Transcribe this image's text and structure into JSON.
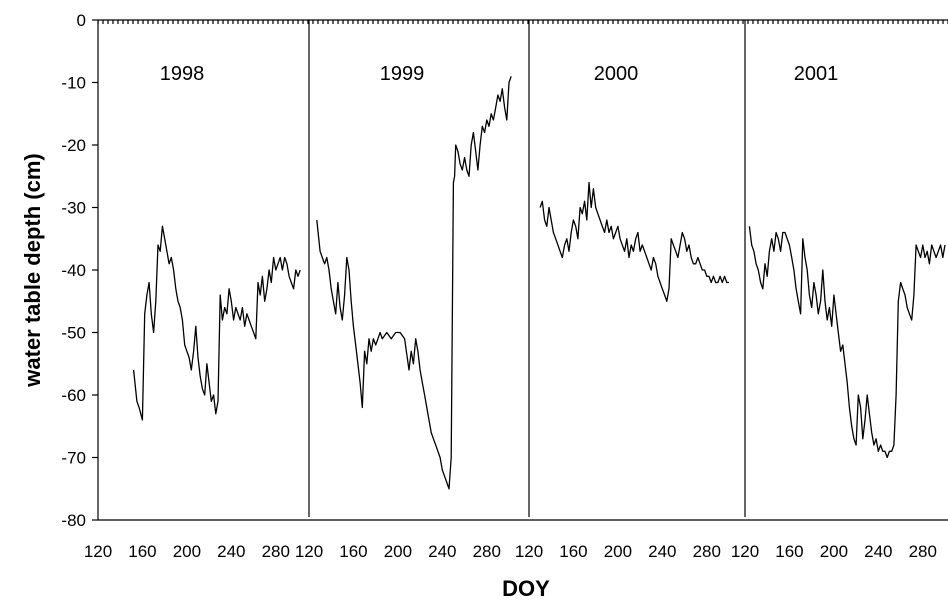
{
  "chart_data": {
    "type": "line",
    "ylabel": "water table depth (cm)",
    "xlabel": "DOY",
    "ylim": [
      -80,
      0
    ],
    "yticks": [
      0,
      -10,
      -20,
      -30,
      -40,
      -50,
      -60,
      -70,
      -80
    ],
    "xlim": [
      120,
      300
    ],
    "xticks": [
      120,
      160,
      200,
      240,
      280
    ],
    "grid": false,
    "panels": [
      {
        "name": "1998",
        "x": [
          152,
          155,
          157,
          160,
          162,
          164,
          166,
          168,
          170,
          172,
          174,
          176,
          178,
          180,
          182,
          184,
          186,
          188,
          190,
          192,
          194,
          196,
          198,
          200,
          202,
          204,
          206,
          208,
          210,
          212,
          214,
          216,
          218,
          220,
          222,
          224,
          226,
          228,
          230,
          232,
          234,
          236,
          238,
          240,
          242,
          244,
          246,
          248,
          250,
          252,
          254,
          256,
          258,
          260,
          262,
          264,
          266,
          268,
          270,
          272,
          274,
          276,
          278,
          280,
          282,
          284,
          286,
          288,
          290,
          292,
          294,
          296,
          298,
          300,
          302
        ],
        "y": [
          -56,
          -61,
          -62,
          -64,
          -47,
          -44,
          -42,
          -47,
          -50,
          -45,
          -36,
          -37,
          -33,
          -35,
          -37,
          -39,
          -38,
          -40,
          -43,
          -45,
          -46,
          -48,
          -52,
          -53,
          -54,
          -56,
          -53,
          -49,
          -54,
          -57,
          -59,
          -60,
          -55,
          -58,
          -61,
          -60,
          -63,
          -61,
          -44,
          -48,
          -46,
          -47,
          -43,
          -45,
          -48,
          -46,
          -47,
          -48,
          -46,
          -49,
          -47,
          -48,
          -49,
          -50,
          -51,
          -42,
          -44,
          -41,
          -45,
          -43,
          -40,
          -42,
          -38,
          -40,
          -39,
          -38,
          -40,
          -38,
          -39,
          -41,
          -42,
          -43,
          -40,
          -41,
          -40
        ]
      },
      {
        "name": "1999",
        "x": [
          127,
          130,
          132,
          134,
          136,
          138,
          140,
          142,
          144,
          146,
          148,
          150,
          152,
          154,
          156,
          158,
          160,
          162,
          164,
          166,
          168,
          170,
          172,
          174,
          176,
          178,
          180,
          182,
          184,
          186,
          190,
          194,
          198,
          202,
          206,
          210,
          212,
          214,
          216,
          218,
          220,
          222,
          224,
          226,
          228,
          230,
          232,
          234,
          236,
          238,
          240,
          242,
          244,
          246,
          248,
          250,
          251,
          252,
          254,
          256,
          258,
          260,
          262,
          264,
          266,
          268,
          270,
          272,
          274,
          276,
          278,
          280,
          282,
          284,
          286,
          288,
          290,
          292,
          294,
          296,
          298,
          300,
          302
        ],
        "y": [
          -32,
          -37,
          -38,
          -39,
          -38,
          -40,
          -43,
          -45,
          -47,
          -42,
          -46,
          -48,
          -44,
          -38,
          -40,
          -45,
          -49,
          -52,
          -55,
          -58,
          -62,
          -53,
          -55,
          -51,
          -53,
          -51,
          -52,
          -51,
          -50,
          -51,
          -50,
          -51,
          -50,
          -50,
          -51,
          -56,
          -53,
          -55,
          -51,
          -53,
          -56,
          -58,
          -60,
          -62,
          -64,
          -66,
          -67,
          -68,
          -69,
          -70,
          -72,
          -73,
          -74,
          -75,
          -70,
          -26,
          -25,
          -20,
          -21,
          -23,
          -24,
          -22,
          -24,
          -25,
          -20,
          -18,
          -21,
          -24,
          -20,
          -17,
          -18,
          -16,
          -17,
          -15,
          -16,
          -14,
          -12,
          -13,
          -11,
          -14,
          -16,
          -10,
          -9
        ]
      },
      {
        "name": "2000",
        "x": [
          130,
          132,
          134,
          136,
          138,
          140,
          142,
          144,
          146,
          148,
          150,
          152,
          154,
          156,
          158,
          160,
          162,
          164,
          166,
          168,
          170,
          172,
          174,
          176,
          178,
          180,
          182,
          184,
          186,
          188,
          190,
          192,
          194,
          196,
          198,
          200,
          202,
          204,
          206,
          208,
          210,
          212,
          214,
          216,
          218,
          220,
          222,
          224,
          226,
          228,
          230,
          232,
          234,
          236,
          238,
          240,
          242,
          244,
          246,
          248,
          250,
          252,
          254,
          256,
          258,
          260,
          262,
          264,
          266,
          268,
          270,
          272,
          274,
          276,
          278,
          280,
          282,
          284,
          286,
          288,
          290,
          292,
          294,
          296,
          298,
          300
        ],
        "y": [
          -30,
          -29,
          -32,
          -33,
          -30,
          -32,
          -34,
          -35,
          -36,
          -37,
          -38,
          -36,
          -35,
          -37,
          -34,
          -32,
          -33,
          -35,
          -30,
          -31,
          -29,
          -32,
          -26,
          -30,
          -27,
          -30,
          -31,
          -32,
          -33,
          -34,
          -32,
          -34,
          -33,
          -35,
          -34,
          -33,
          -35,
          -36,
          -37,
          -35,
          -38,
          -36,
          -37,
          -35,
          -34,
          -37,
          -36,
          -37,
          -38,
          -39,
          -40,
          -38,
          -39,
          -41,
          -42,
          -43,
          -44,
          -45,
          -43,
          -35,
          -36,
          -37,
          -38,
          -36,
          -34,
          -35,
          -37,
          -36,
          -38,
          -39,
          -39,
          -38,
          -39,
          -40,
          -40,
          -41,
          -41,
          -42,
          -41,
          -42,
          -42,
          -41,
          -42,
          -41,
          -42,
          -42
        ]
      },
      {
        "name": "2001",
        "x": [
          124,
          126,
          128,
          130,
          132,
          134,
          136,
          138,
          140,
          142,
          144,
          146,
          148,
          150,
          152,
          154,
          156,
          158,
          160,
          162,
          164,
          166,
          168,
          170,
          172,
          174,
          176,
          178,
          180,
          182,
          184,
          186,
          188,
          190,
          192,
          194,
          196,
          198,
          200,
          202,
          204,
          206,
          208,
          210,
          212,
          214,
          216,
          218,
          220,
          222,
          224,
          226,
          228,
          230,
          232,
          234,
          236,
          238,
          240,
          242,
          244,
          246,
          248,
          250,
          252,
          254,
          256,
          258,
          260,
          262,
          264,
          266,
          268,
          270,
          272,
          274,
          276,
          278,
          280,
          282,
          284,
          286,
          288,
          290,
          292,
          294,
          296,
          298,
          300
        ],
        "y": [
          -33,
          -36,
          -37,
          -39,
          -40,
          -42,
          -43,
          -39,
          -41,
          -37,
          -35,
          -37,
          -34,
          -35,
          -37,
          -34,
          -34,
          -35,
          -36,
          -38,
          -40,
          -43,
          -45,
          -47,
          -35,
          -38,
          -40,
          -44,
          -46,
          -42,
          -44,
          -47,
          -45,
          -40,
          -45,
          -48,
          -46,
          -49,
          -44,
          -47,
          -50,
          -53,
          -52,
          -55,
          -58,
          -62,
          -65,
          -67,
          -68,
          -60,
          -62,
          -67,
          -64,
          -60,
          -63,
          -66,
          -68,
          -67,
          -69,
          -68,
          -69,
          -69,
          -70,
          -69,
          -69,
          -68,
          -60,
          -45,
          -42,
          -43,
          -44,
          -46,
          -47,
          -48,
          -44,
          -36,
          -37,
          -38,
          -36,
          -38,
          -37,
          -39,
          -36,
          -37,
          -38,
          -37,
          -36,
          -38,
          -36
        ]
      }
    ]
  }
}
